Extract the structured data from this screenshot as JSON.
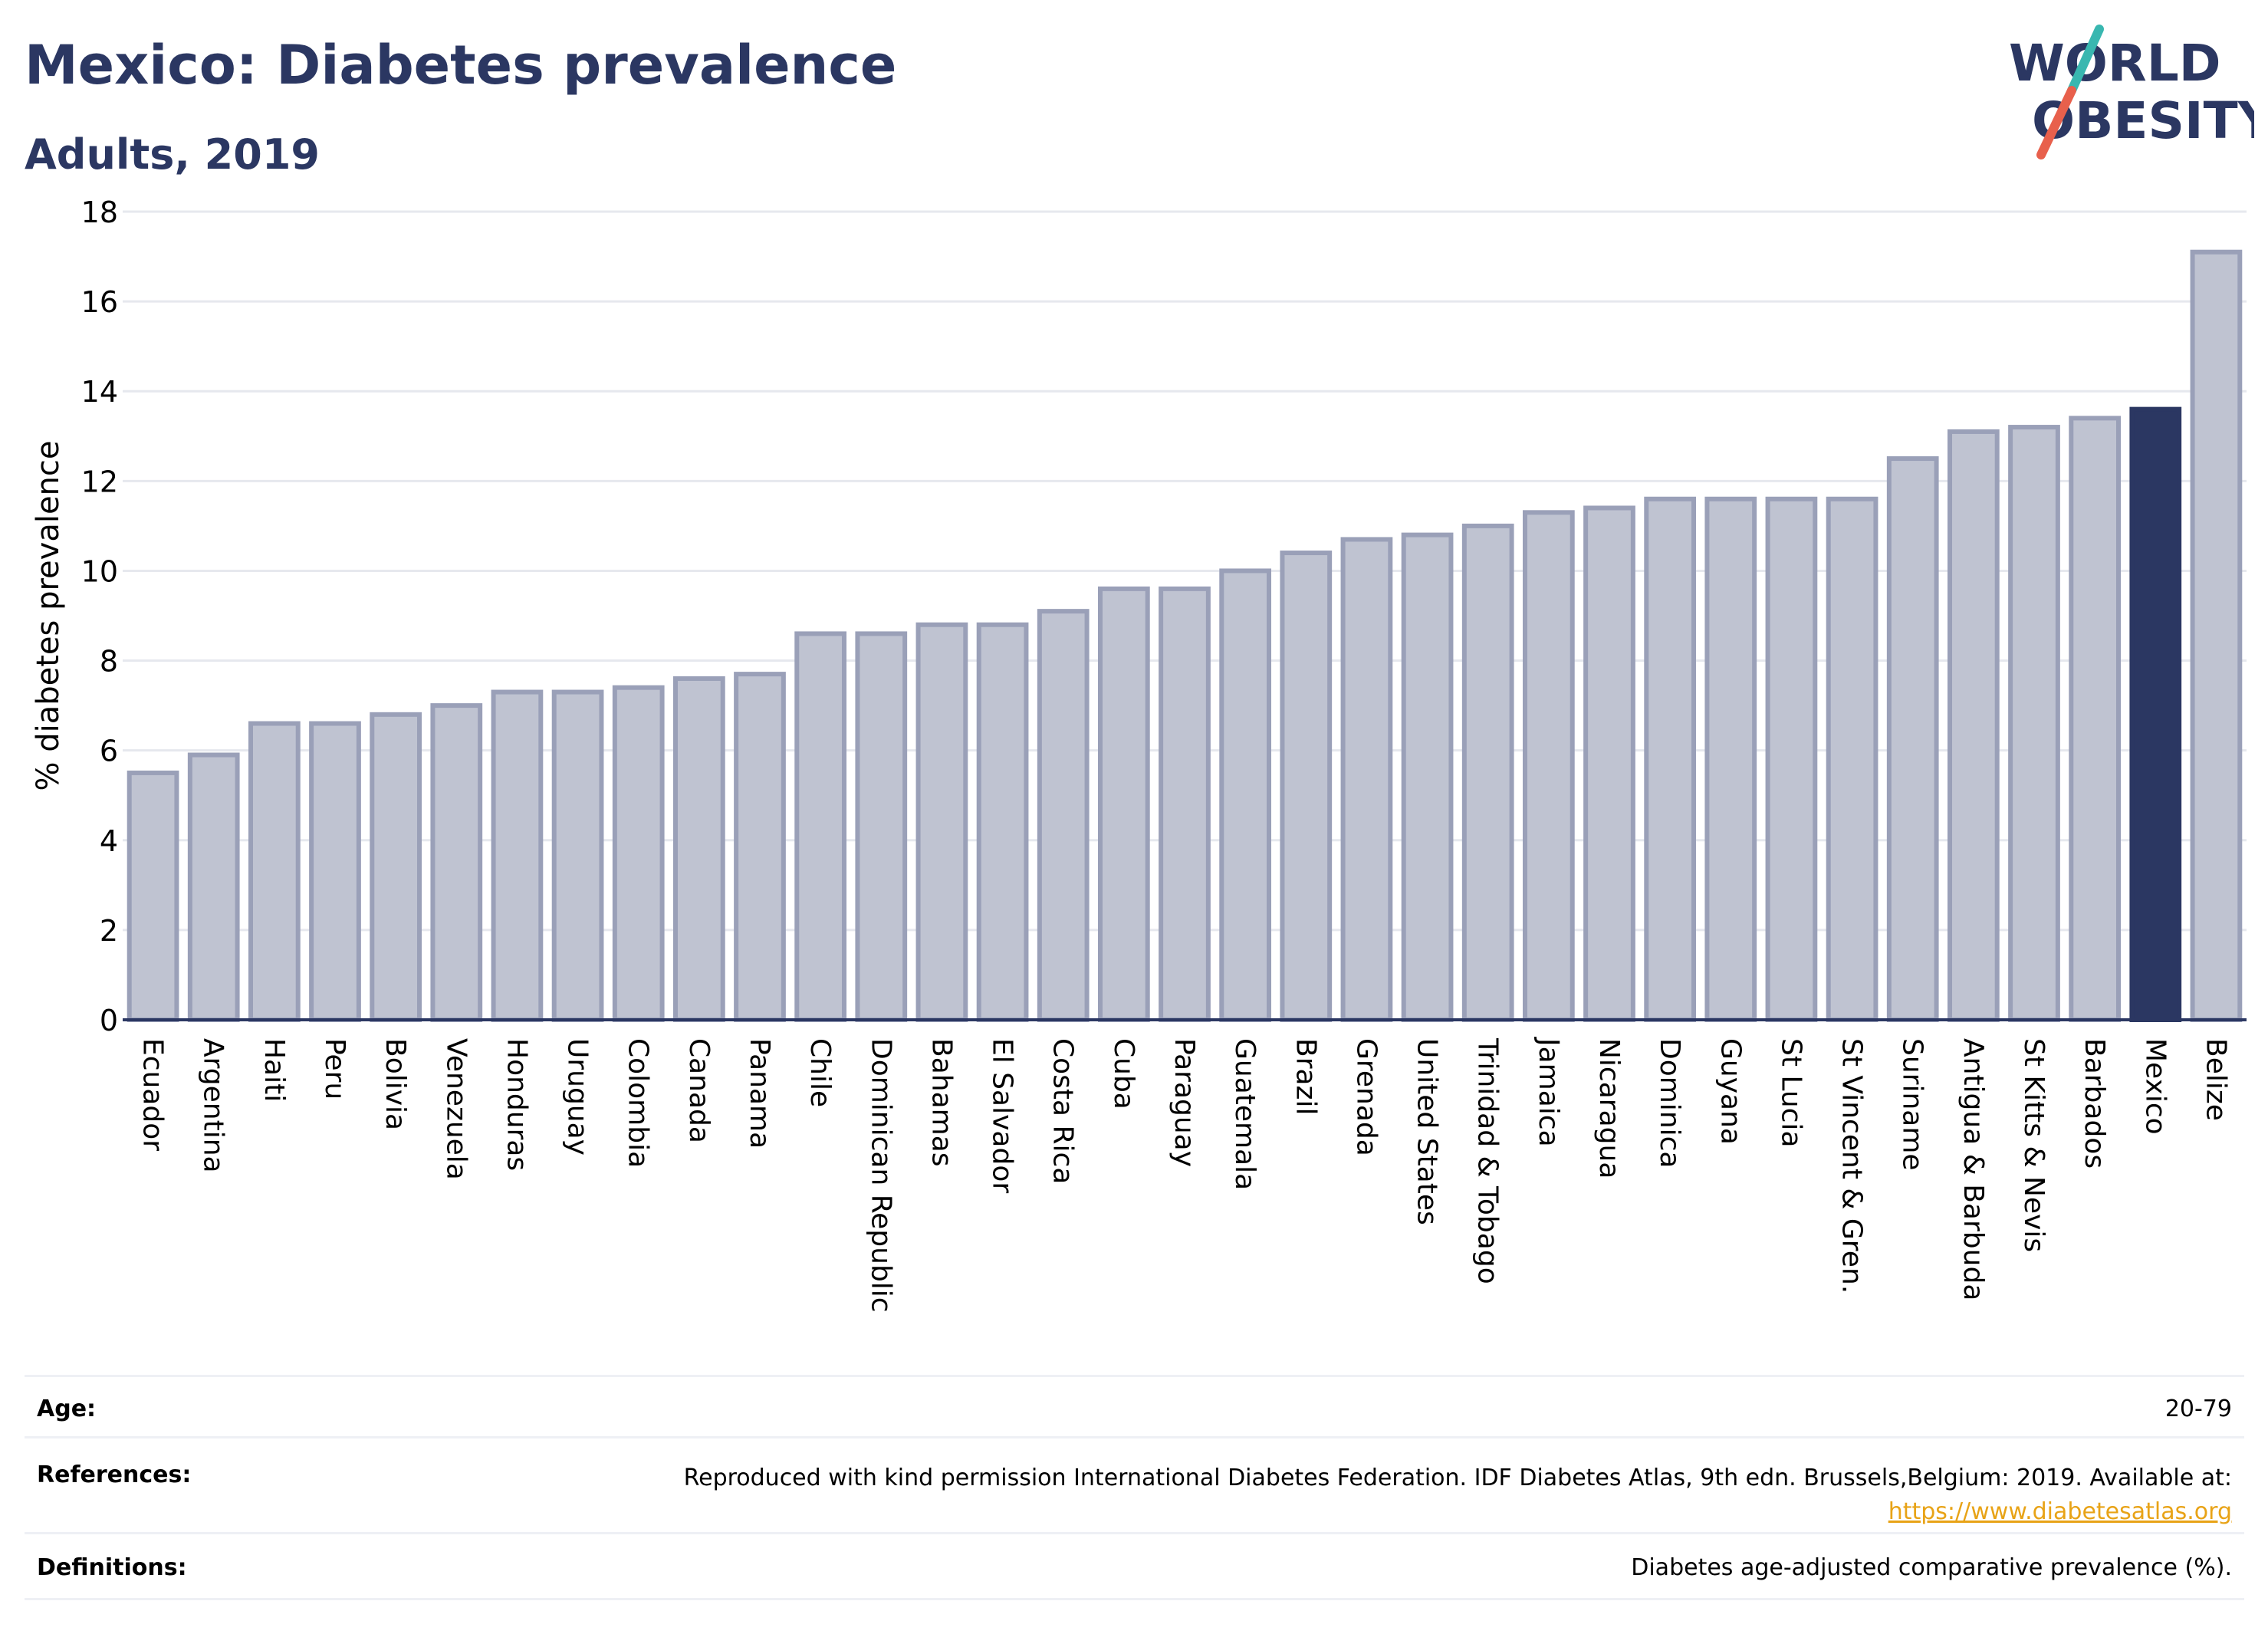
{
  "header": {
    "title": "Mexico: Diabetes prevalence",
    "subtitle": "Adults, 2019"
  },
  "logo": {
    "line1": "WORLD",
    "line2": "OBESITY",
    "slash_colors": [
      "#39b7b0",
      "#e8604c"
    ]
  },
  "colors": {
    "bar": "#bfc3d1",
    "bar_border": "#9aa0b8",
    "highlight": "#2b3762",
    "grid": "#e6e8ee",
    "axis": "#2b3762"
  },
  "chart_data": {
    "type": "bar",
    "categories": [
      "Ecuador",
      "Argentina",
      "Haiti",
      "Peru",
      "Bolivia",
      "Venezuela",
      "Honduras",
      "Uruguay",
      "Colombia",
      "Canada",
      "Panama",
      "Chile",
      "Dominican Republic",
      "Bahamas",
      "El Salvador",
      "Costa Rica",
      "Cuba",
      "Paraguay",
      "Guatemala",
      "Brazil",
      "Grenada",
      "United States",
      "Trinidad & Tobago",
      "Jamaica",
      "Nicaragua",
      "Dominica",
      "Guyana",
      "St Lucia",
      "St Vincent & Gren.",
      "Suriname",
      "Antigua & Barbuda",
      "St Kitts & Nevis",
      "Barbados",
      "Mexico",
      "Belize"
    ],
    "values": [
      5.5,
      5.9,
      6.6,
      6.6,
      6.8,
      7.0,
      7.3,
      7.3,
      7.4,
      7.6,
      7.7,
      8.6,
      8.6,
      8.8,
      8.8,
      9.1,
      9.6,
      9.6,
      10.0,
      10.4,
      10.7,
      10.8,
      11.0,
      11.3,
      11.4,
      11.6,
      11.6,
      11.6,
      11.6,
      12.5,
      13.1,
      13.2,
      13.4,
      13.6,
      17.1
    ],
    "highlight": "Mexico",
    "ylabel": "% diabetes prevalence",
    "xlabel": "",
    "ylim": [
      0,
      18
    ],
    "yticks": [
      0,
      2,
      4,
      6,
      8,
      10,
      12,
      14,
      16,
      18
    ],
    "grid": true
  },
  "footer": {
    "age": {
      "label": "Age:",
      "value": "20-79"
    },
    "references": {
      "label": "References:",
      "value": "Reproduced with kind permission International Diabetes Federation. IDF Diabetes Atlas, 9th edn. Brussels,Belgium: 2019. Available at:",
      "link": "https://www.diabetesatlas.org"
    },
    "definitions": {
      "label": "Definitions:",
      "value": "Diabetes age-adjusted comparative prevalence (%)."
    }
  }
}
